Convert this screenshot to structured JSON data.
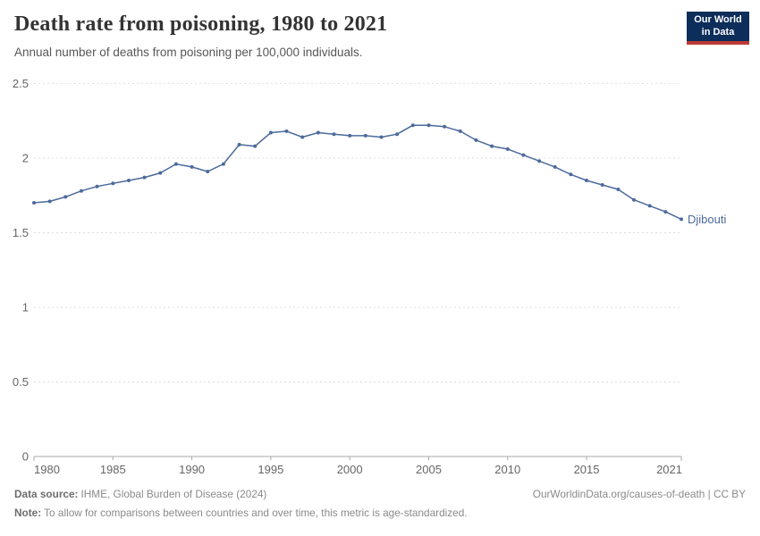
{
  "header": {
    "title": "Death rate from poisoning, 1980 to 2021",
    "subtitle": "Annual number of deaths from poisoning per 100,000 individuals.",
    "logo_line1": "Our World",
    "logo_line2": "in Data",
    "logo_bg_color": "#0d2e5a",
    "logo_stripe_color": "#bc3a33"
  },
  "chart_data": {
    "type": "line",
    "title": "Death rate from poisoning, 1980 to 2021",
    "subtitle": "Annual number of deaths from poisoning per 100,000 individuals.",
    "xlabel": "",
    "ylabel": "",
    "xlim": [
      1980,
      2021
    ],
    "ylim": [
      0,
      2.5
    ],
    "grid": "horizontal-dashed",
    "legend_position": "end-of-line-label",
    "x_ticks": [
      1980,
      1985,
      1990,
      1995,
      2000,
      2005,
      2010,
      2015,
      2021
    ],
    "x_tick_labels": [
      "1980",
      "1985",
      "1990",
      "1995",
      "2000",
      "2005",
      "2010",
      "2015",
      "2021"
    ],
    "y_ticks": [
      0,
      0.5,
      1,
      1.5,
      2,
      2.5
    ],
    "y_tick_labels": [
      "0",
      "0.5",
      "1",
      "1.5",
      "2",
      "2.5"
    ],
    "series": [
      {
        "name": "Djibouti",
        "color": "#4c6a9c",
        "x": [
          1980,
          1981,
          1982,
          1983,
          1984,
          1985,
          1986,
          1987,
          1988,
          1989,
          1990,
          1991,
          1992,
          1993,
          1994,
          1995,
          1996,
          1997,
          1998,
          1999,
          2000,
          2001,
          2002,
          2003,
          2004,
          2005,
          2006,
          2007,
          2008,
          2009,
          2010,
          2011,
          2012,
          2013,
          2014,
          2015,
          2016,
          2017,
          2018,
          2019,
          2020,
          2021
        ],
        "values": [
          1.7,
          1.71,
          1.74,
          1.78,
          1.81,
          1.83,
          1.85,
          1.87,
          1.9,
          1.96,
          1.94,
          1.91,
          1.96,
          2.09,
          2.08,
          2.17,
          2.18,
          2.14,
          2.17,
          2.16,
          2.15,
          2.15,
          2.14,
          2.16,
          2.22,
          2.22,
          2.21,
          2.18,
          2.12,
          2.08,
          2.06,
          2.02,
          1.98,
          1.94,
          1.89,
          1.85,
          1.82,
          1.79,
          1.72,
          1.68,
          1.64,
          1.59
        ]
      }
    ],
    "entity_label": "Djibouti",
    "colors": {
      "line": "#4c6a9c",
      "gridline": "#dddddd",
      "axis": "#a8a8a8",
      "tick_label": "#666666"
    }
  },
  "footer": {
    "data_source_label": "Data source:",
    "data_source_value": "IHME, Global Burden of Disease (2024)",
    "link": "OurWorldinData.org/causes-of-death | CC BY",
    "note_label": "Note:",
    "note_value": "To allow for comparisons between countries and over time, this metric is age-standardized."
  }
}
